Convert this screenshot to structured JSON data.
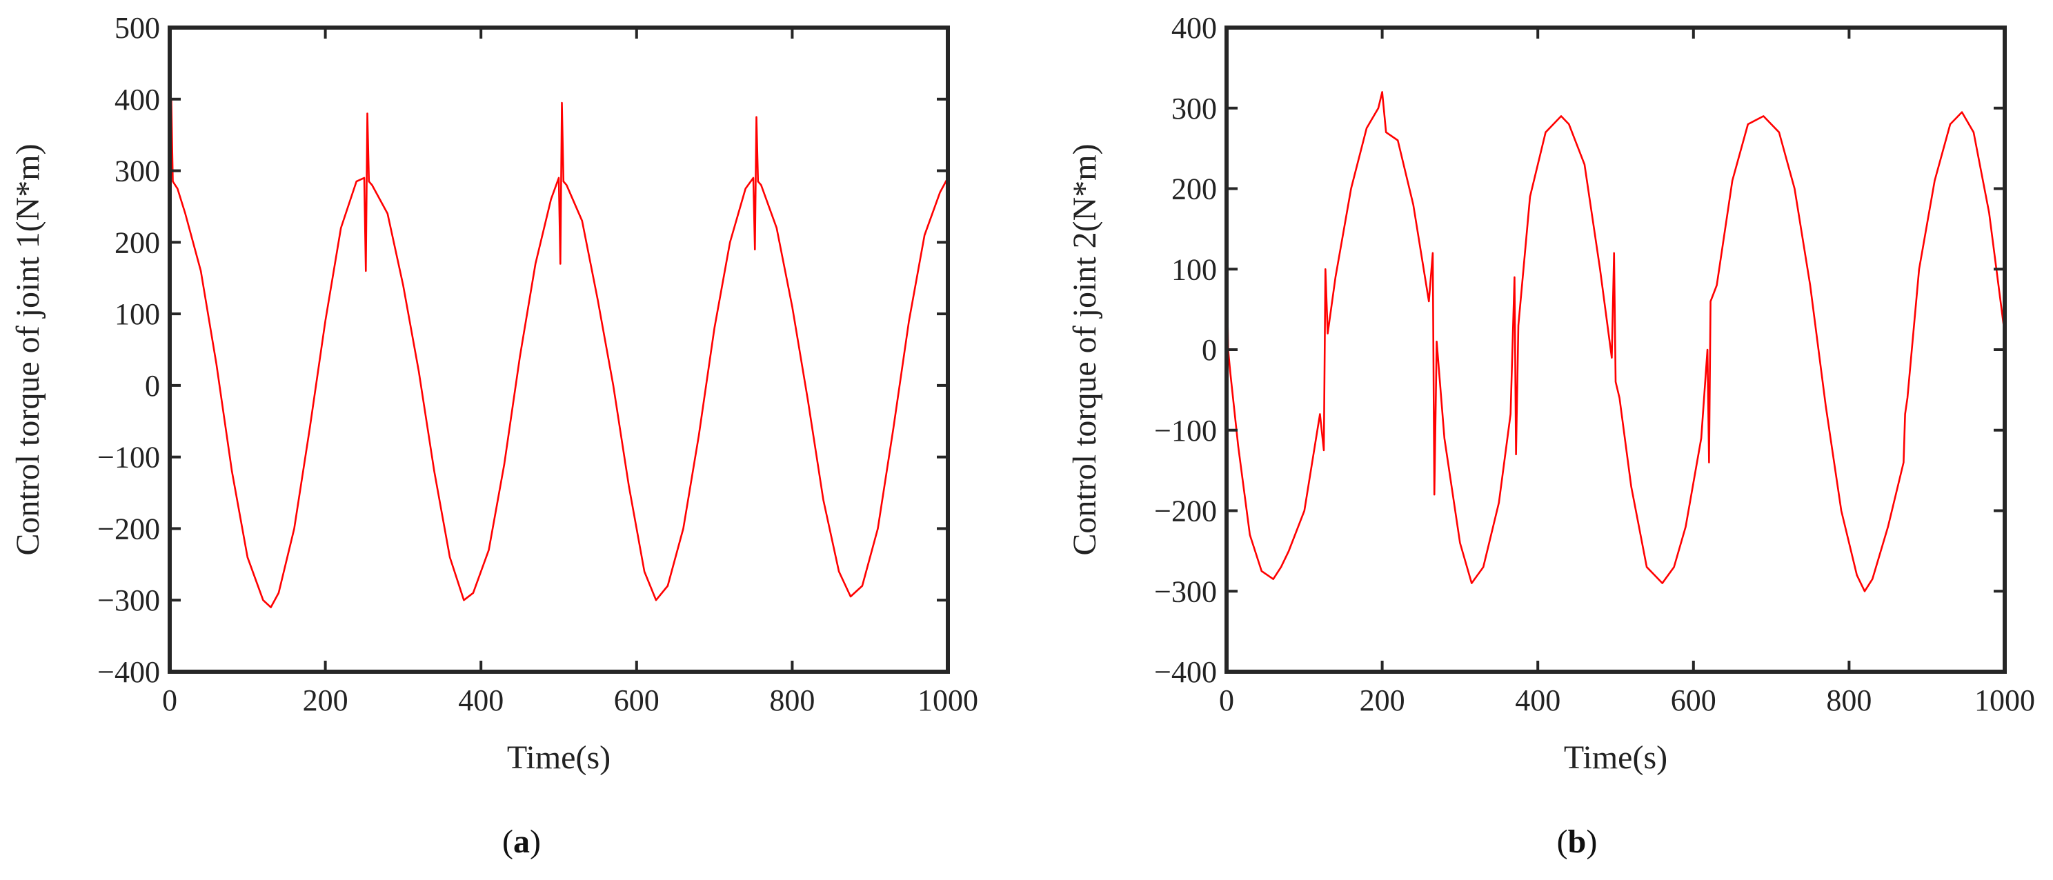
{
  "chart_data": [
    {
      "type": "line",
      "caption_letter": "a",
      "xlabel": "Time(s)",
      "ylabel": "Control torque of joint 1(N*m)",
      "xlim": [
        0,
        1000
      ],
      "ylim": [
        -400,
        500
      ],
      "xticks": [
        0,
        200,
        400,
        600,
        800,
        1000
      ],
      "yticks": [
        -400,
        -300,
        -200,
        -100,
        0,
        100,
        200,
        300,
        400,
        500
      ],
      "grid": false,
      "legend": "none",
      "series": [
        {
          "color": "#ff0000",
          "x": [
            0,
            2,
            4,
            10,
            20,
            40,
            60,
            80,
            100,
            120,
            130,
            140,
            160,
            180,
            200,
            220,
            240,
            250,
            252,
            254,
            256,
            260,
            280,
            300,
            320,
            340,
            360,
            378,
            390,
            410,
            430,
            450,
            470,
            490,
            500,
            502,
            504,
            506,
            510,
            530,
            550,
            570,
            590,
            610,
            625,
            640,
            660,
            680,
            700,
            720,
            740,
            750,
            752,
            754,
            756,
            760,
            780,
            800,
            820,
            840,
            860,
            875,
            890,
            910,
            930,
            950,
            970,
            990,
            1000
          ],
          "y": [
            0,
            400,
            285,
            275,
            240,
            160,
            30,
            -120,
            -240,
            -300,
            -310,
            -290,
            -200,
            -60,
            90,
            220,
            285,
            290,
            160,
            380,
            285,
            280,
            240,
            140,
            20,
            -120,
            -240,
            -300,
            -290,
            -230,
            -110,
            40,
            170,
            260,
            290,
            170,
            395,
            285,
            280,
            230,
            120,
            0,
            -140,
            -260,
            -300,
            -280,
            -200,
            -70,
            80,
            200,
            275,
            290,
            190,
            375,
            285,
            280,
            220,
            110,
            -20,
            -160,
            -260,
            -295,
            -280,
            -200,
            -60,
            90,
            210,
            270,
            290
          ]
        }
      ]
    },
    {
      "type": "line",
      "caption_letter": "b",
      "xlabel": "Time(s)",
      "ylabel": "Control torque of joint 2(N*m)",
      "xlim": [
        0,
        1000
      ],
      "ylim": [
        -400,
        400
      ],
      "xticks": [
        0,
        200,
        400,
        600,
        800,
        1000
      ],
      "yticks": [
        -400,
        -300,
        -200,
        -100,
        0,
        100,
        200,
        300,
        400
      ],
      "grid": false,
      "legend": "none",
      "series": [
        {
          "color": "#ff0000",
          "x": [
            0,
            2,
            5,
            15,
            30,
            45,
            60,
            70,
            80,
            100,
            120,
            125,
            127,
            130,
            140,
            160,
            180,
            195,
            200,
            205,
            220,
            240,
            260,
            265,
            267,
            270,
            280,
            300,
            315,
            330,
            350,
            365,
            370,
            372,
            375,
            390,
            410,
            430,
            440,
            460,
            480,
            495,
            498,
            500,
            505,
            520,
            540,
            560,
            575,
            590,
            610,
            618,
            620,
            622,
            630,
            650,
            670,
            690,
            710,
            730,
            750,
            770,
            790,
            810,
            820,
            830,
            850,
            870,
            872,
            875,
            890,
            910,
            930,
            945,
            960,
            980,
            1000
          ],
          "y": [
            110,
            0,
            -30,
            -120,
            -230,
            -275,
            -285,
            -270,
            -250,
            -200,
            -80,
            -125,
            100,
            20,
            90,
            200,
            275,
            300,
            320,
            270,
            260,
            180,
            60,
            120,
            -180,
            10,
            -110,
            -240,
            -290,
            -270,
            -190,
            -80,
            90,
            -130,
            30,
            190,
            270,
            290,
            280,
            230,
            100,
            -10,
            120,
            -40,
            -60,
            -170,
            -270,
            -290,
            -270,
            -220,
            -110,
            0,
            -140,
            60,
            80,
            210,
            280,
            290,
            270,
            200,
            80,
            -70,
            -200,
            -280,
            -300,
            -285,
            -220,
            -140,
            -80,
            -60,
            100,
            210,
            280,
            295,
            270,
            170,
            20
          ]
        }
      ]
    }
  ]
}
